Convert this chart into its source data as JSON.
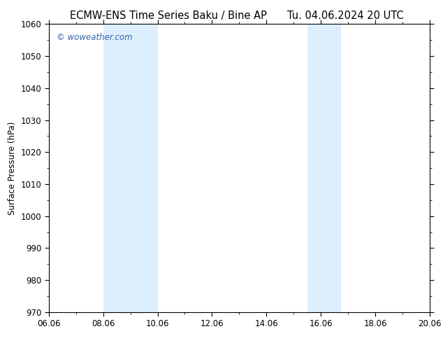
{
  "title_left": "ECMW-ENS Time Series Baku / Bine AP",
  "title_right": "Tu. 04.06.2024 20 UTC",
  "ylabel": "Surface Pressure (hPa)",
  "xlabel": "",
  "ylim": [
    970,
    1060
  ],
  "yticks": [
    970,
    980,
    990,
    1000,
    1010,
    1020,
    1030,
    1040,
    1050,
    1060
  ],
  "xtick_labels": [
    "06.06",
    "08.06",
    "10.06",
    "12.06",
    "14.06",
    "16.06",
    "18.06",
    "20.06"
  ],
  "xtick_positions": [
    0,
    2,
    4,
    6,
    8,
    10,
    12,
    14
  ],
  "x_total": 14,
  "shaded_bands": [
    {
      "x_start": 2.0,
      "x_end": 2.75
    },
    {
      "x_start": 2.75,
      "x_end": 4.0
    },
    {
      "x_start": 9.5,
      "x_end": 10.0
    },
    {
      "x_start": 10.0,
      "x_end": 10.75
    }
  ],
  "shaded_color": "#ddeeff",
  "background_color": "#ffffff",
  "plot_bg_color": "#ffffff",
  "watermark_text": "© woweather.com",
  "watermark_color": "#3366aa",
  "title_fontsize": 10.5,
  "label_fontsize": 8.5,
  "tick_fontsize": 8.5
}
